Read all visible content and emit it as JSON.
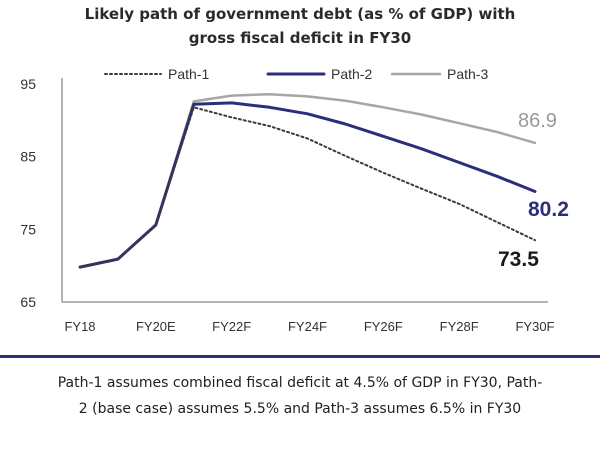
{
  "title_lines": [
    "Likely path of government debt (as % of GDP)  with",
    "gross fiscal deficit in FY30"
  ],
  "footnote_lines": [
    "Path-1 assumes combined fiscal deficit at 4.5% of GDP in FY30, Path-",
    "2 (base case) assumes 5.5% and Path-3 assumes 6.5% in FY30"
  ],
  "colors": {
    "path1": "#3a3a3a",
    "path2": "#2b2f7a",
    "path3": "#a6a6a6",
    "axis": "#9a9a9a",
    "divider": "#2b2f7a"
  },
  "chart_data": {
    "type": "line",
    "title": "Likely path of government debt (as % of GDP)  with gross fiscal deficit in FY30",
    "xlabel": "",
    "ylabel": "",
    "x": [
      "FY18",
      "FY19",
      "FY20E",
      "FY21",
      "FY22F",
      "FY23",
      "FY24F",
      "FY25",
      "FY26F",
      "FY27",
      "FY28F",
      "FY29",
      "FY30F"
    ],
    "x_tick_labels": [
      "FY18",
      "FY20E",
      "FY22F",
      "FY24F",
      "FY26F",
      "FY28F",
      "FY30F"
    ],
    "y_ticks": [
      65,
      75,
      85,
      95
    ],
    "ylim": [
      65,
      95
    ],
    "grid": false,
    "legend": "top",
    "series": [
      {
        "name": "Path-1",
        "style": "dotted",
        "values": [
          69.8,
          70.9,
          75.6,
          91.8,
          90.4,
          89.2,
          87.5,
          85.1,
          82.8,
          80.6,
          78.5,
          76.0,
          73.5
        ],
        "end_label": "73.5"
      },
      {
        "name": "Path-2",
        "style": "solid",
        "values": [
          69.8,
          70.9,
          75.6,
          92.2,
          92.4,
          91.8,
          90.9,
          89.5,
          87.8,
          86.1,
          84.2,
          82.3,
          80.2
        ],
        "end_label": "80.2"
      },
      {
        "name": "Path-3",
        "style": "solid",
        "values": [
          69.8,
          70.9,
          75.6,
          92.6,
          93.4,
          93.6,
          93.3,
          92.7,
          91.8,
          90.8,
          89.6,
          88.4,
          86.9
        ],
        "end_label": "86.9"
      }
    ]
  }
}
